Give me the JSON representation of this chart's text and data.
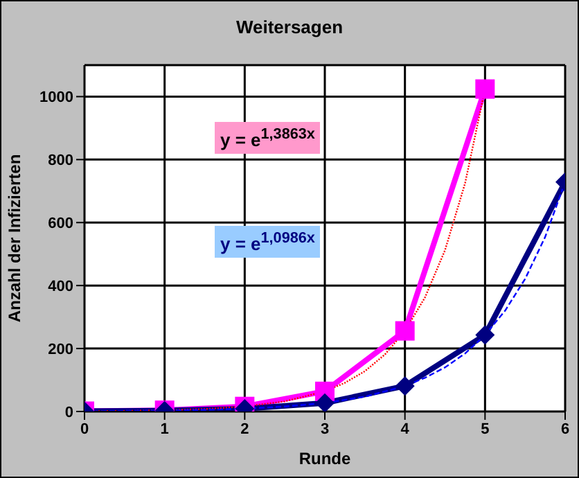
{
  "chart_data": {
    "type": "line",
    "title": "Weitersagen",
    "xlabel": "Runde",
    "ylabel": "Anzahl der Infizierten",
    "xlim": [
      0,
      6
    ],
    "xticks": [
      0,
      1,
      2,
      3,
      4,
      5,
      6
    ],
    "ylim": [
      0,
      1100
    ],
    "yticks": [
      0,
      200,
      400,
      600,
      800,
      1000
    ],
    "grid": true,
    "annotations": [
      "y = e$^{1,3863x}$",
      "y = e$^{1,0986x}$"
    ],
    "series": [
      {
        "color": "#ff00ff",
        "marker": "square",
        "line_style": "solid",
        "x": [
          0,
          1,
          2,
          3,
          4,
          5
        ],
        "values": [
          1,
          4,
          16,
          64,
          256,
          1024
        ]
      },
      {
        "color": "#000080",
        "marker": "diamond",
        "line_style": "solid",
        "x": [
          0,
          1,
          2,
          3,
          4,
          5,
          6
        ],
        "values": [
          1,
          3,
          9,
          27,
          81,
          243,
          729
        ]
      },
      {
        "color": "#ff0000",
        "marker": "none",
        "line_style": "dotted",
        "x": [
          0,
          0.5,
          1,
          1.5,
          2,
          2.5,
          3,
          3.25,
          3.5,
          3.75,
          4,
          4.25,
          4.5,
          4.75,
          5
        ],
        "values": [
          1,
          2,
          4,
          8,
          16,
          32,
          64,
          91,
          128,
          181,
          256,
          362,
          512,
          724,
          1024
        ]
      },
      {
        "color": "#0000ff",
        "marker": "none",
        "line_style": "dashed",
        "x": [
          0,
          0.5,
          1,
          1.5,
          2,
          2.5,
          3,
          3.5,
          4,
          4.25,
          4.5,
          4.75,
          5,
          5.25,
          5.5,
          5.75,
          6
        ],
        "values": [
          1,
          2,
          3,
          5,
          9,
          16,
          27,
          47,
          81,
          107,
          140,
          184,
          243,
          320,
          421,
          554,
          729
        ]
      }
    ]
  }
}
